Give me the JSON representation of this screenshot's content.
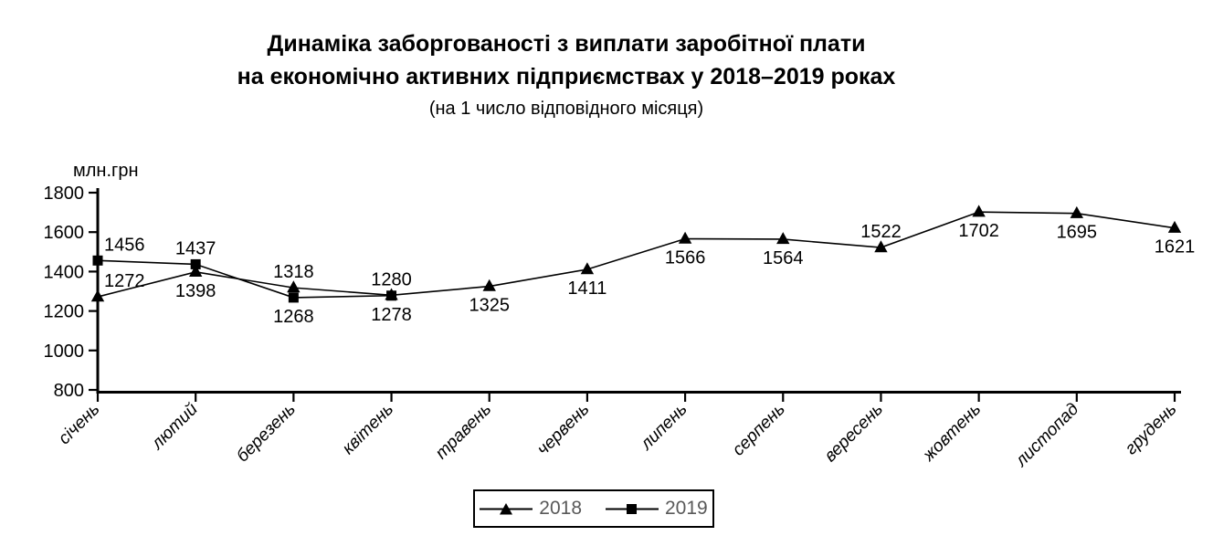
{
  "title": {
    "line1": "Динаміка заборгованості з виплати заробітної плати",
    "line2": "на економічно активних підприємствах у 2018–2019 роках",
    "subtitle": "(на 1 число відповідного місяця)"
  },
  "chart_data": {
    "type": "line",
    "title": "Динаміка заборгованості з виплати заробітної плати на економічно активних підприємствах у 2018–2019 роках (на 1 число відповідного місяця)",
    "ylabel": "млн.грн",
    "xlabel": "",
    "ylim": [
      800,
      1800
    ],
    "yticks": [
      800,
      1000,
      1200,
      1400,
      1600,
      1800
    ],
    "grid": false,
    "legend_position": "bottom",
    "categories": [
      "січень",
      "лютий",
      "березень",
      "квітень",
      "травень",
      "червень",
      "липень",
      "серпень",
      "вересень",
      "жовтень",
      "листопад",
      "грудень"
    ],
    "series": [
      {
        "name": "2018",
        "marker": "triangle",
        "color": "#000000",
        "values": [
          1272,
          1398,
          1318,
          1280,
          1325,
          1411,
          1566,
          1564,
          1522,
          1702,
          1695,
          1621
        ],
        "label_positions": [
          "above",
          "below",
          "above",
          "above",
          "below",
          "below",
          "below",
          "below",
          "above",
          "below",
          "below",
          "below"
        ]
      },
      {
        "name": "2019",
        "marker": "square",
        "color": "#000000",
        "values": [
          1456,
          1437,
          1268,
          1278,
          null,
          null,
          null,
          null,
          null,
          null,
          null,
          null
        ],
        "label_positions": [
          "above",
          "above",
          "below",
          "below",
          null,
          null,
          null,
          null,
          null,
          null,
          null,
          null
        ]
      }
    ],
    "axis_color": "#000000",
    "label_color": "#000000",
    "legend_text_color": "#595959"
  }
}
